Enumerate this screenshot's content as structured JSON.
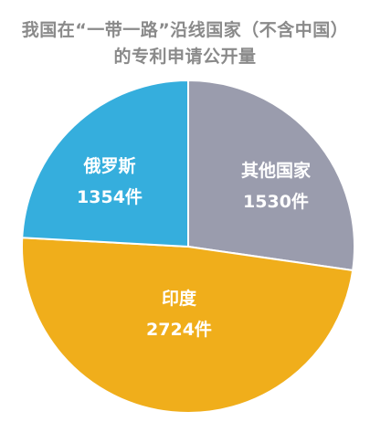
{
  "chart_data": {
    "type": "pie",
    "title_lines": [
      "我国在“一带一路”沿线国家（不含中国）",
      "的专利申请公开量"
    ],
    "unit": "件",
    "slices": [
      {
        "label": "俄罗斯",
        "value": 1354,
        "value_text": "1354件",
        "color": "#35aedd"
      },
      {
        "label": "其他国家",
        "value": 1530,
        "value_text": "1530件",
        "color": "#9a9cad"
      },
      {
        "label": "印度",
        "value": 2724,
        "value_text": "2724件",
        "color": "#f0ae1b"
      }
    ],
    "legend": false
  }
}
